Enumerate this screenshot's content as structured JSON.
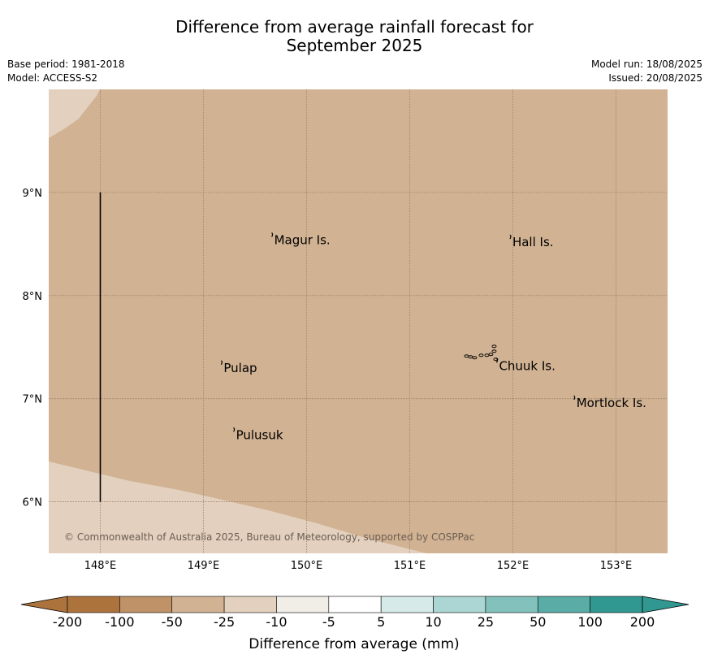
{
  "title": {
    "line1": "Difference from average rainfall forecast for",
    "line2": "September 2025"
  },
  "meta": {
    "base_period": "Base period: 1981-2018",
    "model": "Model: ACCESS-S2",
    "model_run": "Model run: 18/08/2025",
    "issued": "Issued: 20/08/2025"
  },
  "map": {
    "lon_range": [
      147.5,
      153.5
    ],
    "lat_range": [
      5.5,
      10.0
    ],
    "background_color": "#d1b293",
    "light_region_color": "#e3d0bf",
    "grid": true,
    "lon_ticks": [
      {
        "value": 148,
        "label": "148°E"
      },
      {
        "value": 149,
        "label": "149°E"
      },
      {
        "value": 150,
        "label": "150°E"
      },
      {
        "value": 151,
        "label": "151°E"
      },
      {
        "value": 152,
        "label": "152°E"
      },
      {
        "value": 153,
        "label": "153°E"
      }
    ],
    "lat_ticks": [
      {
        "value": 9,
        "label": "9°N"
      },
      {
        "value": 8,
        "label": "8°N"
      },
      {
        "value": 7,
        "label": "7°N"
      },
      {
        "value": 6,
        "label": "6°N"
      }
    ],
    "places": [
      {
        "name": "Magur Is.",
        "lon": 149.67,
        "lat": 8.57
      },
      {
        "name": "Hall Is.",
        "lon": 151.98,
        "lat": 8.55
      },
      {
        "name": "Pulap",
        "lon": 149.18,
        "lat": 7.33
      },
      {
        "name": "Chuuk Is.",
        "lon": 151.85,
        "lat": 7.35
      },
      {
        "name": "Mortlock Is.",
        "lon": 152.6,
        "lat": 6.99
      },
      {
        "name": "Pulusuk",
        "lon": 149.3,
        "lat": 6.68
      }
    ],
    "copyright": "© Commonwealth of Australia 2025, Bureau of Meteorology, supported by COSPPac"
  },
  "colorbar": {
    "label": "Difference from average (mm)",
    "ticks": [
      "-200",
      "-100",
      "-50",
      "-25",
      "-10",
      "-5",
      "5",
      "10",
      "25",
      "50",
      "100",
      "200"
    ],
    "colors": [
      "#ad733d",
      "#bf9268",
      "#d1b293",
      "#e3d0bf",
      "#f1ede7",
      "#ffffff",
      "#d6ebe9",
      "#acd6d3",
      "#83c1bd",
      "#5aaca7",
      "#319891"
    ],
    "extend_low_color": "#ad733d",
    "extend_high_color": "#319891"
  }
}
